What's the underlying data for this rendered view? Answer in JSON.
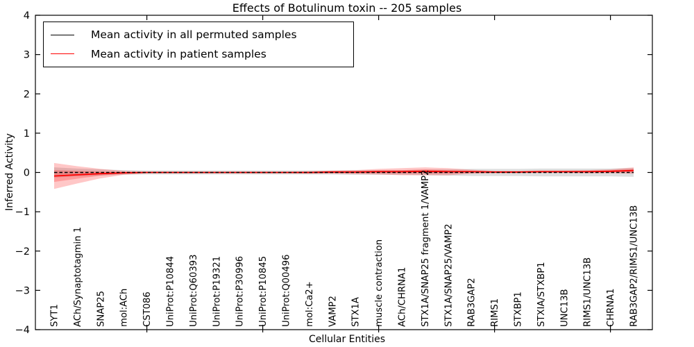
{
  "figure": {
    "title": "Effects of Botulinum toxin -- 205 samples",
    "xlabel": "Cellular Entities",
    "ylabel": "Inferred Activity",
    "background": "#ffffff"
  },
  "legend": {
    "position": "upper left",
    "items": [
      {
        "label": "Mean activity in all permuted samples",
        "color": "#000000"
      },
      {
        "label": "Mean activity in patient samples",
        "color": "#ff0000"
      }
    ]
  },
  "chart_data": {
    "type": "line",
    "title": "Effects of Botulinum toxin -- 205 samples",
    "xlabel": "Cellular Entities",
    "ylabel": "Inferred Activity",
    "ylim": [
      -4,
      4
    ],
    "yticks": [
      4,
      3,
      2,
      1,
      0,
      -1,
      -2,
      -3,
      -4
    ],
    "grid": false,
    "legend_position": "upper left",
    "x_major_tick_indices": [
      4,
      9,
      14,
      19,
      24
    ],
    "categories": [
      "SYT1",
      "ACh/Synaptotagmin 1",
      "SNAP25",
      "mol:ACh",
      "CST086",
      "UniProt:P10844",
      "UniProt:Q60393",
      "UniProt:P19321",
      "UniProt:P30996",
      "UniProt:P10845",
      "UniProt:Q00496",
      "mol:Ca2+",
      "VAMP2",
      "STX1A",
      "muscle contraction",
      "ACh/CHRNA1",
      "STX1A/SNAP25 fragment 1/VAMP2",
      "STX1A/SNAP25/VAMP2",
      "RAB3GAP2",
      "RIMS1",
      "STXBP1",
      "STXIA/STXBP1",
      "UNC13B",
      "RIMS1/UNC13B",
      "CHRNA1",
      "RAB3GAP2/RIMS1/UNC13B"
    ],
    "series": [
      {
        "name": "Mean activity in all permuted samples",
        "color": "#000000",
        "line_style": "dashed",
        "band_fill": "rgba(0,0,0,0.13)",
        "values": [
          0,
          0,
          0,
          0,
          0,
          0,
          0,
          0,
          0,
          0,
          0,
          0,
          0,
          0,
          0,
          0,
          0,
          0,
          0,
          0,
          0,
          0,
          0,
          0,
          0,
          0
        ],
        "band": [
          0.13,
          0.1,
          0.08,
          0.06,
          0.05,
          0.05,
          0.05,
          0.05,
          0.05,
          0.05,
          0.05,
          0.05,
          0.05,
          0.06,
          0.06,
          0.06,
          0.07,
          0.08,
          0.09,
          0.09,
          0.09,
          0.1,
          0.1,
          0.1,
          0.1,
          0.11
        ]
      },
      {
        "name": "Mean activity in patient samples",
        "color": "#ff0000",
        "line_style": "solid",
        "band_fill": "rgba(255,0,0,0.22)",
        "values": [
          -0.09,
          -0.06,
          -0.03,
          -0.01,
          0,
          0,
          0,
          0,
          0,
          0,
          0,
          0,
          0.01,
          0.01,
          0.02,
          0.02,
          0.03,
          0.02,
          0.02,
          0.01,
          0.01,
          0.02,
          0.02,
          0.02,
          0.03,
          0.05
        ],
        "band_outer": [
          0.33,
          0.22,
          0.12,
          0.05,
          0.02,
          0.02,
          0.02,
          0.02,
          0.02,
          0.02,
          0.02,
          0.03,
          0.04,
          0.05,
          0.07,
          0.09,
          0.1,
          0.09,
          0.05,
          0.03,
          0.03,
          0.03,
          0.03,
          0.04,
          0.05,
          0.08
        ],
        "band_inner": [
          0.15,
          0.1,
          0.05,
          0.02,
          0.01,
          0.01,
          0.01,
          0.01,
          0.01,
          0.01,
          0.01,
          0.015,
          0.02,
          0.025,
          0.03,
          0.04,
          0.05,
          0.04,
          0.02,
          0.015,
          0.015,
          0.015,
          0.015,
          0.02,
          0.025,
          0.04
        ]
      }
    ]
  }
}
